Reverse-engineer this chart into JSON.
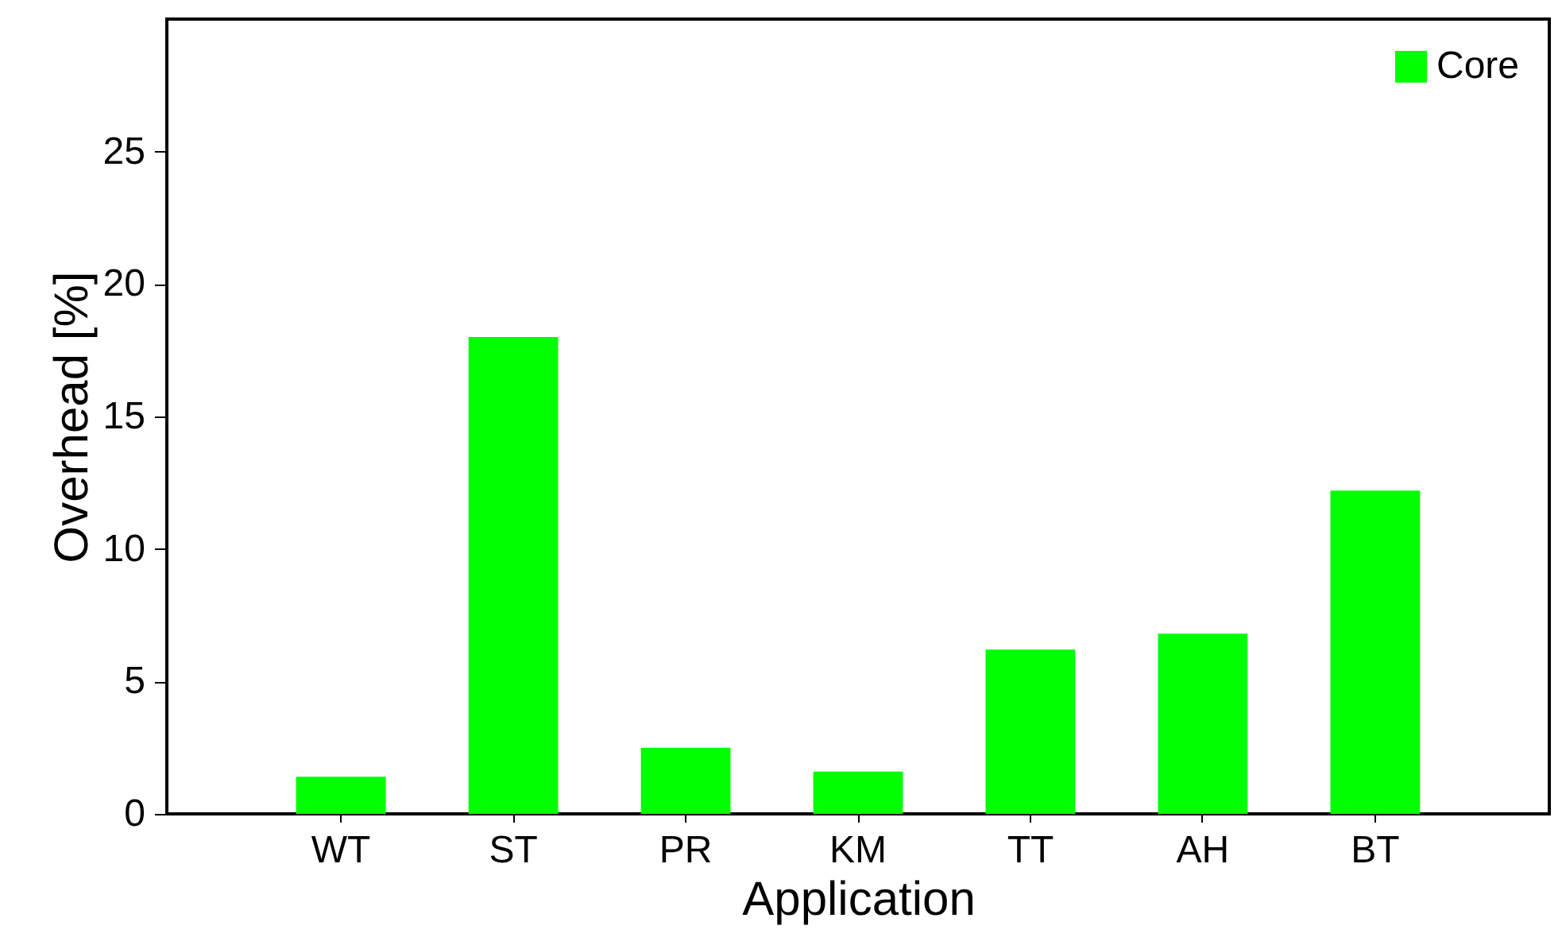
{
  "chart_data": {
    "type": "bar",
    "xlabel": "Application",
    "ylabel": "Overhead [%]",
    "categories": [
      "WT",
      "ST",
      "PR",
      "KM",
      "TT",
      "AH",
      "BT"
    ],
    "series": [
      {
        "name": "Core",
        "color": "#00ff00",
        "values": [
          1.4,
          18.0,
          2.5,
          1.6,
          6.2,
          6.8,
          12.2
        ]
      }
    ],
    "ylim": [
      0,
      30
    ],
    "yticks": [
      0,
      5,
      10,
      15,
      20,
      25
    ],
    "legend": "top right",
    "grid": false
  }
}
